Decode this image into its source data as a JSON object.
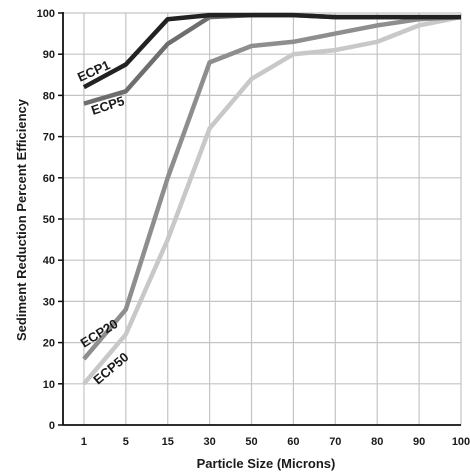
{
  "chart_data": {
    "type": "line",
    "title": "",
    "xlabel": "Particle Size (Microns)",
    "ylabel": "Sediment Reduction Percent Efficiency",
    "x": [
      "1",
      "5",
      "15",
      "30",
      "50",
      "60",
      "70",
      "80",
      "90",
      "100"
    ],
    "ylim": [
      0,
      100
    ],
    "yticks": [
      0,
      10,
      20,
      30,
      40,
      50,
      60,
      70,
      80,
      90,
      100
    ],
    "grid": true,
    "series": [
      {
        "name": "ECP1",
        "color": "#222222",
        "values": [
          82,
          87.5,
          98.5,
          99.5,
          99.5,
          99.5,
          99,
          99,
          99,
          99
        ]
      },
      {
        "name": "ECP5",
        "color": "#6e6e6e",
        "values": [
          78,
          81,
          92.5,
          99,
          99.5,
          99.5,
          99,
          99,
          99,
          99
        ]
      },
      {
        "name": "ECP20",
        "color": "#8e8e8e",
        "values": [
          16,
          28,
          60,
          88,
          92,
          93,
          95,
          97,
          98.5,
          99
        ]
      },
      {
        "name": "ECP50",
        "color": "#c8c8c8",
        "values": [
          10,
          22,
          45,
          72,
          84,
          90,
          91,
          93,
          97,
          99
        ]
      }
    ]
  }
}
